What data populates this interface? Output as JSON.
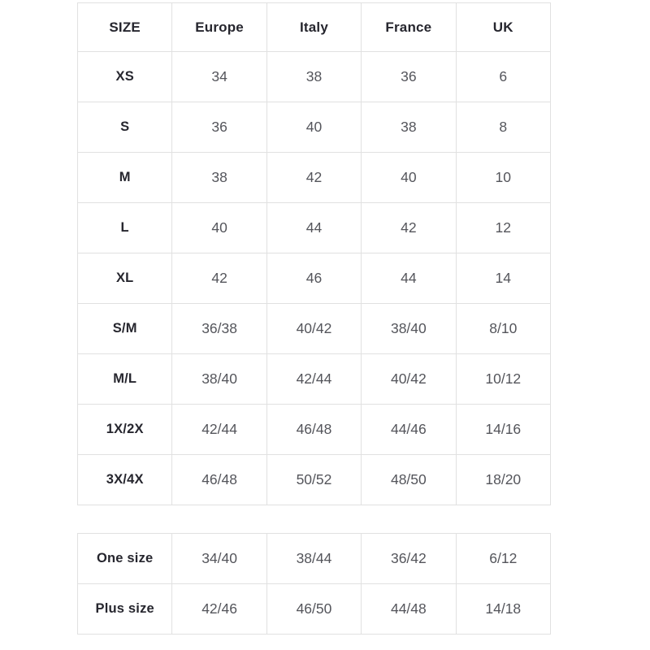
{
  "colors": {
    "background": "#ffffff",
    "grid_border": "#e1e1e1",
    "header_text": "#26262e",
    "value_text": "#54555b"
  },
  "chart_data": {
    "type": "table",
    "title": "",
    "columns": [
      "SIZE",
      "Europe",
      "Italy",
      "France",
      "UK"
    ],
    "rows": [
      [
        "XS",
        "34",
        "38",
        "36",
        "6"
      ],
      [
        "S",
        "36",
        "40",
        "38",
        "8"
      ],
      [
        "M",
        "38",
        "42",
        "40",
        "10"
      ],
      [
        "L",
        "40",
        "44",
        "42",
        "12"
      ],
      [
        "XL",
        "42",
        "46",
        "44",
        "14"
      ],
      [
        "S/M",
        "36/38",
        "40/42",
        "38/40",
        "8/10"
      ],
      [
        "M/L",
        "38/40",
        "42/44",
        "40/42",
        "10/12"
      ],
      [
        "1X/2X",
        "42/44",
        "46/48",
        "44/46",
        "14/16"
      ],
      [
        "3X/4X",
        "46/48",
        "50/52",
        "48/50",
        "18/20"
      ]
    ],
    "secondary_rows": [
      [
        "One size",
        "34/40",
        "38/44",
        "36/42",
        "6/12"
      ],
      [
        "Plus size",
        "42/46",
        "46/50",
        "44/48",
        "14/18"
      ]
    ],
    "layout": {
      "grid": true,
      "legend": "none",
      "header_row": true
    }
  }
}
